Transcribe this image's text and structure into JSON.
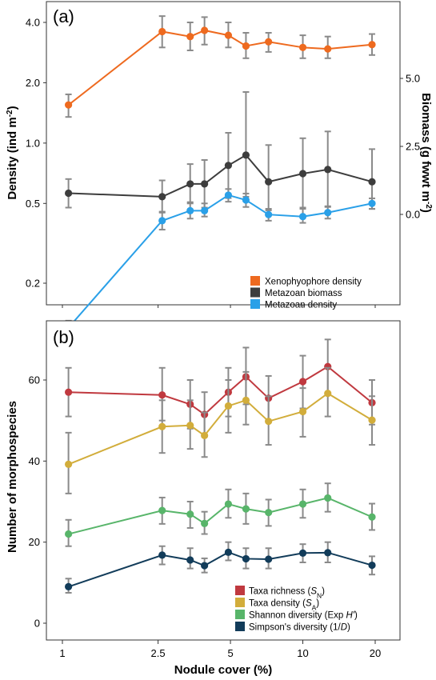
{
  "chart_data": [
    {
      "panel": "(a)",
      "type": "line",
      "x": [
        1.06,
        2.6,
        3.4,
        3.9,
        4.9,
        5.8,
        7.2,
        10.0,
        12.7,
        19.4
      ],
      "xlabel": "",
      "xscale": "log",
      "ylabel": "Density (ind m⁻²)",
      "yscale": "log",
      "yticks": [
        "0.2",
        "0.5",
        "1.0",
        "2.0",
        "4.0"
      ],
      "ylabel_right": "Biomass (g fwwt m⁻²)",
      "yticks_right": [
        "0.0",
        "2.5",
        "5.0"
      ],
      "legend_position": "bottom-right",
      "grid": false,
      "series": [
        {
          "name": "Xenophyophore density",
          "axis": "left",
          "color": "#ee6a1f",
          "values": [
            1.55,
            3.6,
            3.4,
            3.65,
            3.45,
            3.05,
            3.2,
            3.0,
            2.95,
            3.1
          ],
          "err_low": [
            1.35,
            3.0,
            2.9,
            3.1,
            3.0,
            2.65,
            2.85,
            2.65,
            2.65,
            2.75
          ],
          "err_high": [
            1.75,
            4.3,
            4.0,
            4.25,
            4.0,
            3.55,
            3.55,
            3.45,
            3.4,
            3.5
          ]
        },
        {
          "name": "Metazoan biomass",
          "axis": "right",
          "color": "#3d3d3d",
          "values": [
            0.78,
            0.65,
            1.12,
            1.12,
            1.8,
            2.18,
            1.2,
            1.5,
            1.65,
            1.2
          ],
          "err_low": [
            0.25,
            0.1,
            0.45,
            0.25,
            0.6,
            0.65,
            0.15,
            0.25,
            0.3,
            0.2
          ],
          "err_high": [
            1.3,
            1.25,
            1.85,
            2.0,
            3.0,
            4.5,
            2.55,
            2.8,
            3.05,
            2.4
          ]
        },
        {
          "name": "Metazoan density",
          "color": "#2aa0e8",
          "axis": "left",
          "values": [
            0.12,
            0.41,
            0.46,
            0.46,
            0.55,
            0.52,
            0.44,
            0.43,
            0.45,
            0.5
          ],
          "err_low": [
            0.11,
            0.37,
            0.42,
            0.43,
            0.51,
            0.48,
            0.41,
            0.4,
            0.42,
            0.47
          ],
          "err_high": [
            0.13,
            0.45,
            0.5,
            0.5,
            0.59,
            0.56,
            0.47,
            0.47,
            0.48,
            0.53
          ]
        }
      ]
    },
    {
      "panel": "(b)",
      "type": "line",
      "x": [
        1.06,
        2.6,
        3.4,
        3.9,
        4.9,
        5.8,
        7.2,
        10.0,
        12.7,
        19.4
      ],
      "xlabel": "Nodule cover (%)",
      "xscale": "log",
      "xticks": [
        "1",
        "2.5",
        "5",
        "10",
        "20"
      ],
      "ylabel": "Number of morphospecies",
      "yticks": [
        "0",
        "20",
        "40",
        "60"
      ],
      "ylim": [
        -4,
        74
      ],
      "legend_position": "bottom-right",
      "grid": false,
      "series": [
        {
          "name": "Taxa richness (S_N)",
          "color": "#c0393f",
          "values": [
            57.0,
            56.3,
            54.0,
            51.5,
            57.0,
            60.8,
            55.5,
            59.6,
            63.3,
            54.4
          ],
          "err_low": [
            51.0,
            50.0,
            48.0,
            46.0,
            51.0,
            54.0,
            50.0,
            53.0,
            56.5,
            49.0
          ],
          "err_high": [
            63.0,
            63.0,
            60.0,
            57.0,
            63.0,
            68.0,
            61.0,
            66.0,
            70.0,
            60.0
          ]
        },
        {
          "name": "Taxa density (S_A)",
          "color": "#d2ad3b",
          "values": [
            39.2,
            48.5,
            48.8,
            46.3,
            53.6,
            55.0,
            49.8,
            52.2,
            56.7,
            50.1
          ],
          "err_low": [
            32.0,
            42.0,
            43.0,
            41.0,
            47.0,
            49.0,
            44.0,
            46.0,
            51.0,
            44.0
          ],
          "err_high": [
            47.0,
            55.0,
            55.0,
            52.0,
            60.0,
            62.0,
            56.0,
            58.0,
            63.0,
            56.0
          ]
        },
        {
          "name": "Shannon diversity (Exp H')",
          "color": "#58b56a",
          "values": [
            22.0,
            27.8,
            26.9,
            24.6,
            29.4,
            28.2,
            27.3,
            29.4,
            30.9,
            26.2
          ],
          "err_low": [
            19.0,
            24.5,
            23.5,
            22.0,
            26.0,
            24.5,
            24.0,
            26.0,
            27.5,
            23.0
          ],
          "err_high": [
            25.5,
            31.0,
            30.0,
            27.5,
            33.0,
            32.0,
            30.5,
            33.0,
            34.5,
            29.5
          ]
        },
        {
          "name": "Simpson's diversity (1/D)",
          "color": "#123c5a",
          "values": [
            9.0,
            16.8,
            15.6,
            14.2,
            17.5,
            15.9,
            15.8,
            17.3,
            17.4,
            14.3
          ],
          "err_low": [
            7.5,
            14.5,
            13.5,
            12.5,
            15.5,
            13.5,
            13.5,
            15.0,
            15.0,
            12.0
          ],
          "err_high": [
            11.0,
            19.0,
            18.5,
            16.0,
            20.0,
            18.5,
            18.5,
            19.5,
            20.0,
            16.5
          ]
        }
      ]
    }
  ],
  "legend_a": [
    {
      "label": "Xenophyophore density",
      "color": "#ee6a1f"
    },
    {
      "label": "Metazoan biomass",
      "color": "#3d3d3d"
    },
    {
      "label": "Metazoan density",
      "color": "#2aa0e8"
    }
  ],
  "legend_b": [
    {
      "label": "Taxa richness (",
      "sym": "S",
      "sub": "N",
      "post": ")",
      "color": "#c0393f"
    },
    {
      "label": "Taxa density (",
      "sym": "S",
      "sub": "A",
      "post": ")",
      "color": "#d2ad3b"
    },
    {
      "label": "Shannon diversity (Exp ",
      "sym": "H'",
      "sub": "",
      "post": ")",
      "color": "#58b56a"
    },
    {
      "label": "Simpson's diversity (1/",
      "sym": "D",
      "sub": "",
      "post": ")",
      "color": "#123c5a"
    }
  ],
  "style": {
    "error_bar_color": "#8a8a8a"
  }
}
